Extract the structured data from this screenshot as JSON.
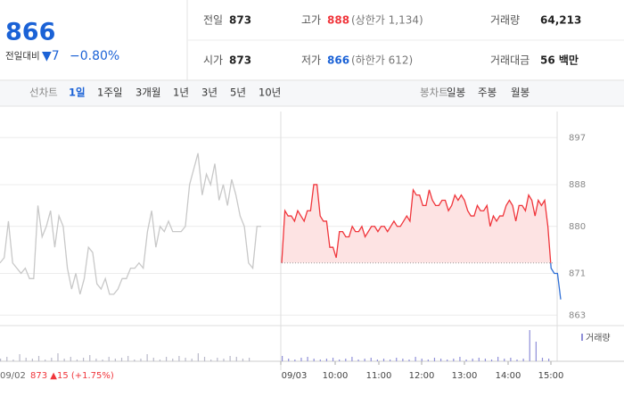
{
  "quote": {
    "price": "866",
    "change_label": "전일대비",
    "change": "▼7",
    "change_pct": "−0.80%"
  },
  "stats": [
    {
      "label": "전일",
      "value": "873"
    },
    {
      "label": "고가",
      "value": "888",
      "extra": "(상한가 1,134)"
    },
    {
      "label": "거래량",
      "value": "64,213"
    },
    {
      "label": "시가",
      "value": "873"
    },
    {
      "label": "저가",
      "value": "866",
      "extra": "(하한가 612)"
    },
    {
      "label": "거래대금",
      "value": "56 백만"
    }
  ],
  "tabs": {
    "line_label": "선차트",
    "line": [
      "1일",
      "1주일",
      "3개월",
      "1년",
      "3년",
      "5년",
      "10년"
    ],
    "candle_label": "봉차트",
    "candle": [
      "일봉",
      "주봉",
      "월봉"
    ]
  },
  "chart_data": {
    "type": "line",
    "ylim": [
      861,
      902
    ],
    "yticks": [
      863,
      871,
      880,
      888,
      897
    ],
    "grid": true,
    "baseline": 873,
    "prev_day": "09/02",
    "prev_day_summary": "873 ▲15 (+1.75%)",
    "time_labels": [
      "09/03",
      "10:00",
      "11:00",
      "12:00",
      "13:00",
      "14:00",
      "15:00"
    ],
    "series": [
      {
        "color": "#c8c8c8",
        "values": [
          873,
          874,
          881,
          873,
          872,
          871,
          872,
          870,
          870,
          884,
          878,
          880,
          883,
          876,
          882,
          880,
          872,
          868,
          871,
          867,
          870,
          876,
          875,
          869,
          868,
          870,
          867,
          867,
          868,
          870,
          870,
          872,
          872,
          873,
          872,
          879,
          883,
          876,
          880,
          879,
          881,
          879,
          879,
          879,
          880,
          888,
          891,
          894,
          886,
          890,
          888,
          892,
          885,
          888,
          884,
          889,
          886,
          882,
          880,
          873,
          872,
          880,
          880
        ]
      },
      {
        "color": "#f0353b",
        "down_color": "#2f6fd6",
        "values": [
          873,
          883,
          882,
          882,
          881,
          883,
          882,
          881,
          883,
          883,
          888,
          888,
          882,
          881,
          881,
          876,
          876,
          874,
          879,
          879,
          878,
          878,
          880,
          879,
          879,
          880,
          878,
          879,
          880,
          880,
          879,
          880,
          880,
          879,
          880,
          881,
          880,
          880,
          881,
          882,
          881,
          887,
          886,
          886,
          884,
          884,
          887,
          885,
          884,
          884,
          885,
          885,
          883,
          884,
          886,
          885,
          886,
          885,
          883,
          882,
          882,
          884,
          883,
          883,
          884,
          880,
          882,
          881,
          882,
          882,
          884,
          885,
          884,
          881,
          884,
          884,
          883,
          886,
          885,
          882,
          885,
          884,
          885,
          880,
          872,
          871,
          871,
          866
        ]
      }
    ],
    "volume": {
      "label": "거래량",
      "color": "#b9b9c9",
      "today_color": "#8f8fd8",
      "prev": [
        3,
        5,
        2,
        8,
        4,
        3,
        6,
        2,
        4,
        9,
        3,
        5,
        2,
        4,
        7,
        3,
        2,
        5,
        3,
        4,
        6,
        2,
        3,
        8,
        4,
        2,
        5,
        3,
        6,
        4,
        3,
        9,
        5,
        2,
        4,
        3,
        6,
        5,
        3,
        4
      ],
      "today": [
        6,
        3,
        2,
        4,
        5,
        3,
        2,
        3,
        4,
        2,
        3,
        5,
        2,
        3,
        4,
        2,
        3,
        2,
        4,
        3,
        2,
        5,
        3,
        2,
        4,
        3,
        2,
        3,
        5,
        2,
        3,
        4,
        3,
        2,
        5,
        3,
        4,
        2,
        3,
        35,
        22,
        4,
        3
      ]
    }
  }
}
